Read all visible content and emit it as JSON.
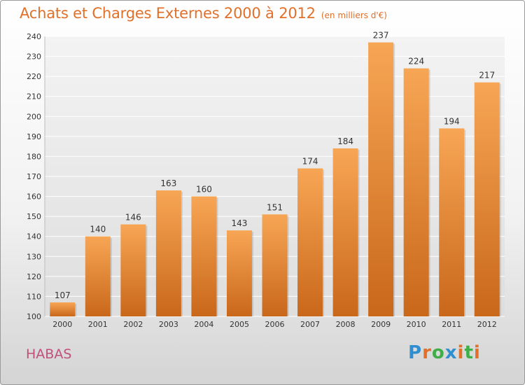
{
  "header": {
    "title": "Achats et Charges Externes 2000 à 2012",
    "unit": "(en milliers d'€)"
  },
  "commune": "HABAS",
  "logo": {
    "text": "Proxiti",
    "letters": [
      {
        "ch": "P",
        "color": "#2f8fd0"
      },
      {
        "ch": "r",
        "color": "#e0702a"
      },
      {
        "ch": "o",
        "color": "#3fae49"
      },
      {
        "ch": "x",
        "color": "#2f8fd0"
      },
      {
        "ch": "i",
        "color": "#e0702a"
      },
      {
        "ch": "t",
        "color": "#3fae49"
      },
      {
        "ch": "i",
        "color": "#e0702a"
      }
    ]
  },
  "colors": {
    "bar_top": "#f7a655",
    "bar_bottom": "#c9671a",
    "title": "#e0702a",
    "commune": "#c0507a"
  },
  "chart_data": {
    "type": "bar",
    "categories": [
      "2000",
      "2001",
      "2002",
      "2003",
      "2004",
      "2005",
      "2006",
      "2007",
      "2008",
      "2009",
      "2010",
      "2011",
      "2012"
    ],
    "values": [
      107,
      140,
      146,
      163,
      160,
      143,
      151,
      174,
      184,
      237,
      224,
      194,
      217
    ],
    "ylim": [
      100,
      240
    ],
    "yticks": [
      100,
      110,
      120,
      130,
      140,
      150,
      160,
      170,
      180,
      190,
      200,
      210,
      220,
      230,
      240
    ],
    "grid": true,
    "legend": "none"
  }
}
